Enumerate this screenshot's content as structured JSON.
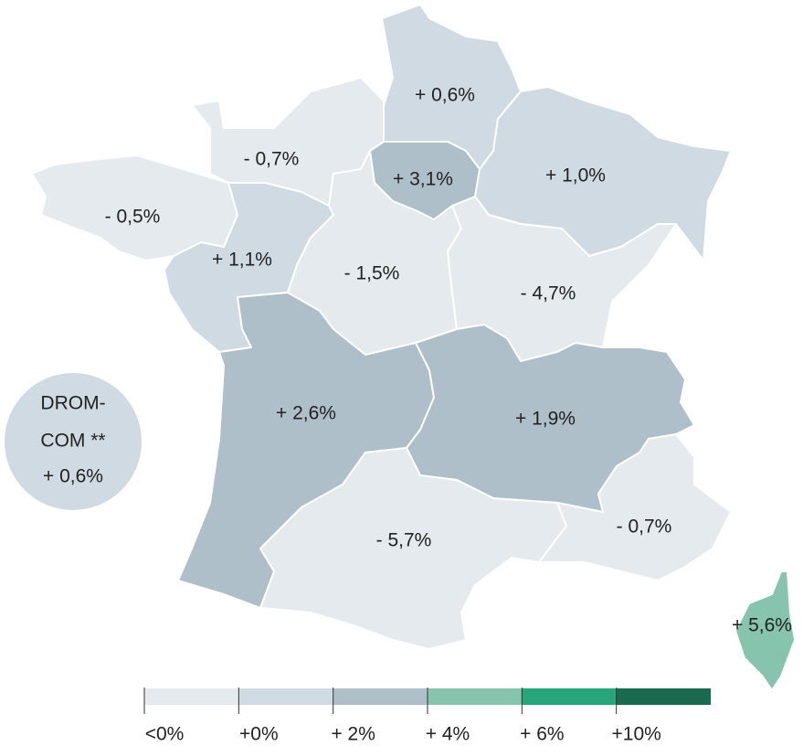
{
  "regions": [
    {
      "label": "+ 0,6%",
      "color": "#cfdae2"
    },
    {
      "label": "- 0,7%",
      "color": "#e4eaee"
    },
    {
      "label": "+ 3,1%",
      "color": "#aebfca"
    },
    {
      "label": "+ 1,0%",
      "color": "#cfdae2"
    },
    {
      "label": "- 0,5%",
      "color": "#e4eaee"
    },
    {
      "label": "+ 1,1%",
      "color": "#cfdae2"
    },
    {
      "label": "- 1,5%",
      "color": "#e4eaee"
    },
    {
      "label": "- 4,7%",
      "color": "#e4eaee"
    },
    {
      "label": "+ 2,6%",
      "color": "#aebfca"
    },
    {
      "label": "+ 1,9%",
      "color": "#aebfca"
    },
    {
      "label": "- 5,7%",
      "color": "#e4eaee"
    },
    {
      "label": "- 0,7%",
      "color": "#e4eaee"
    },
    {
      "label": "+ 5,6%",
      "color": "#86c4ae"
    }
  ],
  "drom": {
    "title_lines": [
      "DROM-",
      "COM **"
    ],
    "label": "+ 0,6%",
    "color": "#cfdae2"
  },
  "legend": [
    {
      "label": "<0%",
      "color": "#e4eaee"
    },
    {
      "label": "+0%",
      "color": "#cfdae2"
    },
    {
      "label": "+ 2%",
      "color": "#aebfca"
    },
    {
      "label": "+ 4%",
      "color": "#86c4ae"
    },
    {
      "label": "+ 6%",
      "color": "#27a67c"
    },
    {
      "label": "+10%",
      "color": "#1a6a4f"
    }
  ]
}
